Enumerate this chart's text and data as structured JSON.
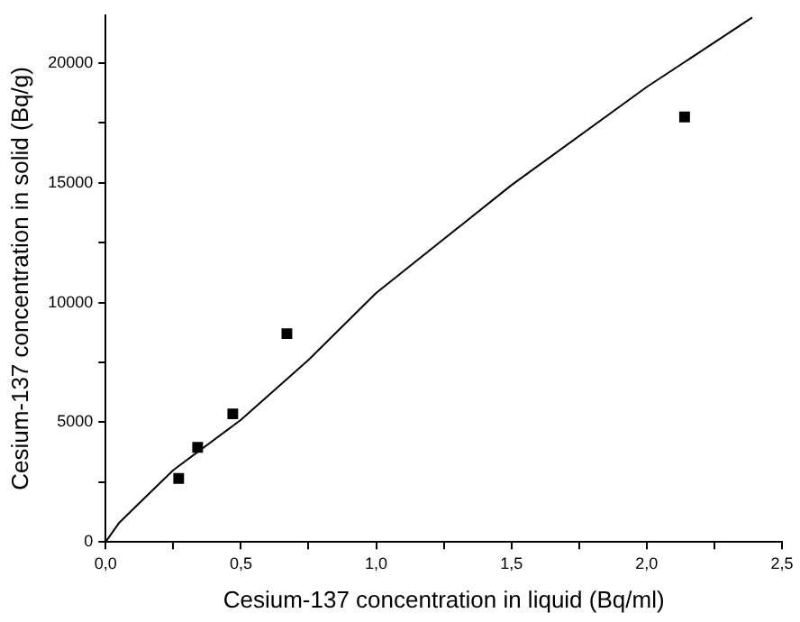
{
  "chart_data": {
    "type": "scatter",
    "xlabel": "Cesium-137 concentration in liquid (Bq/ml)",
    "ylabel": "Cesium-137 concentration in solid (Bq/g)",
    "xlim": [
      0,
      2.5
    ],
    "ylim": [
      0,
      22000
    ],
    "xticks": [
      {
        "value": 0,
        "label": "0,0"
      },
      {
        "value": 0.25,
        "label": null
      },
      {
        "value": 0.5,
        "label": "0,5"
      },
      {
        "value": 0.75,
        "label": null
      },
      {
        "value": 1,
        "label": "1,0"
      },
      {
        "value": 1.25,
        "label": null
      },
      {
        "value": 1.5,
        "label": "1,5"
      },
      {
        "value": 1.75,
        "label": null
      },
      {
        "value": 2,
        "label": "2,0"
      },
      {
        "value": 2.25,
        "label": null
      },
      {
        "value": 2.5,
        "label": "2,5"
      }
    ],
    "yticks": [
      0,
      {
        "value": 2500,
        "label": null
      },
      5000,
      {
        "value": 7500,
        "label": null
      },
      10000,
      {
        "value": 12500,
        "label": null
      },
      15000,
      {
        "value": 17500,
        "label": null
      },
      20000
    ],
    "grid": false,
    "legend": false,
    "marker": "square",
    "series": [
      {
        "color": "#000000",
        "x": [
          0.27,
          0.34,
          0.47,
          0.67,
          2.14
        ],
        "values": [
          2650,
          3950,
          5350,
          8700,
          17750
        ]
      },
      {
        "type": "line",
        "color": "#000000",
        "marker": "none",
        "x": [
          0,
          0.05,
          0.1,
          0.25,
          0.5,
          0.75,
          1,
          1.5,
          2,
          2.39
        ],
        "values": [
          0,
          800,
          1350,
          3000,
          5100,
          7600,
          10400,
          14900,
          19000,
          21900
        ]
      }
    ]
  }
}
